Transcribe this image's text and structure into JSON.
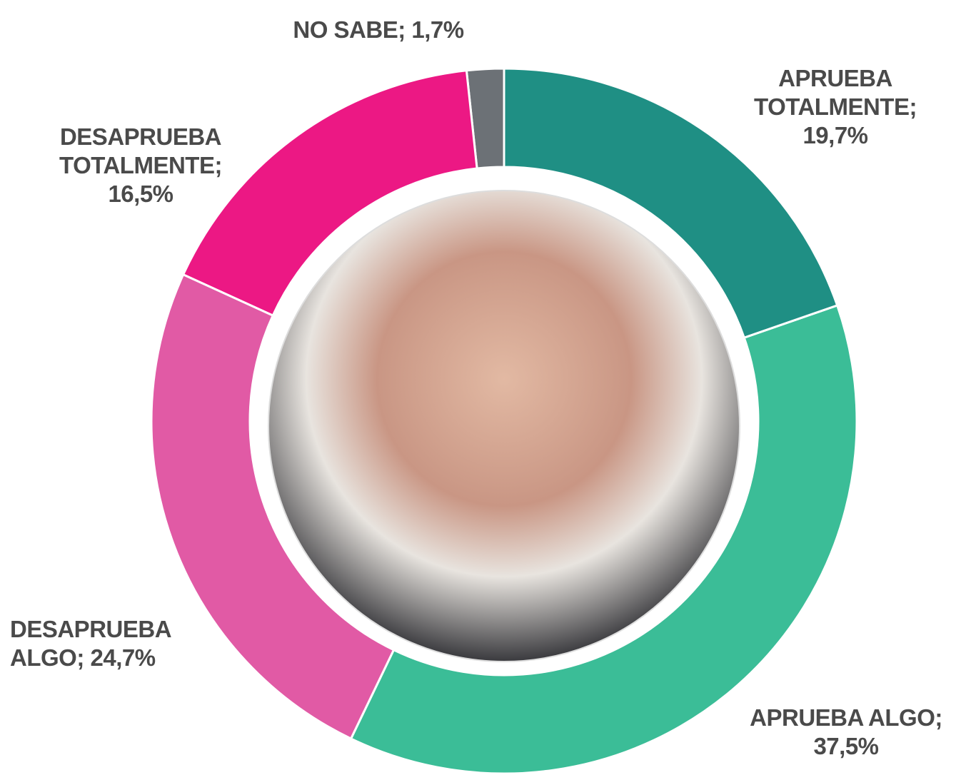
{
  "chart_data": {
    "type": "pie",
    "donut": true,
    "categories": [
      "APRUEBA TOTALMENTE;",
      "APRUEBA ALGO;",
      "DESAPRUEBA ALGO;",
      "DESAPRUEBA TOTALMENTE;",
      "NO SABE;"
    ],
    "values": [
      19.7,
      37.5,
      24.7,
      16.5,
      1.7
    ],
    "value_labels": [
      "19,7%",
      "37,5%",
      "24,7%",
      "16,5%",
      "1,7%"
    ],
    "colors": [
      "#1f8f84",
      "#3bbd97",
      "#e15aa5",
      "#ec1884",
      "#6c7176"
    ]
  }
}
